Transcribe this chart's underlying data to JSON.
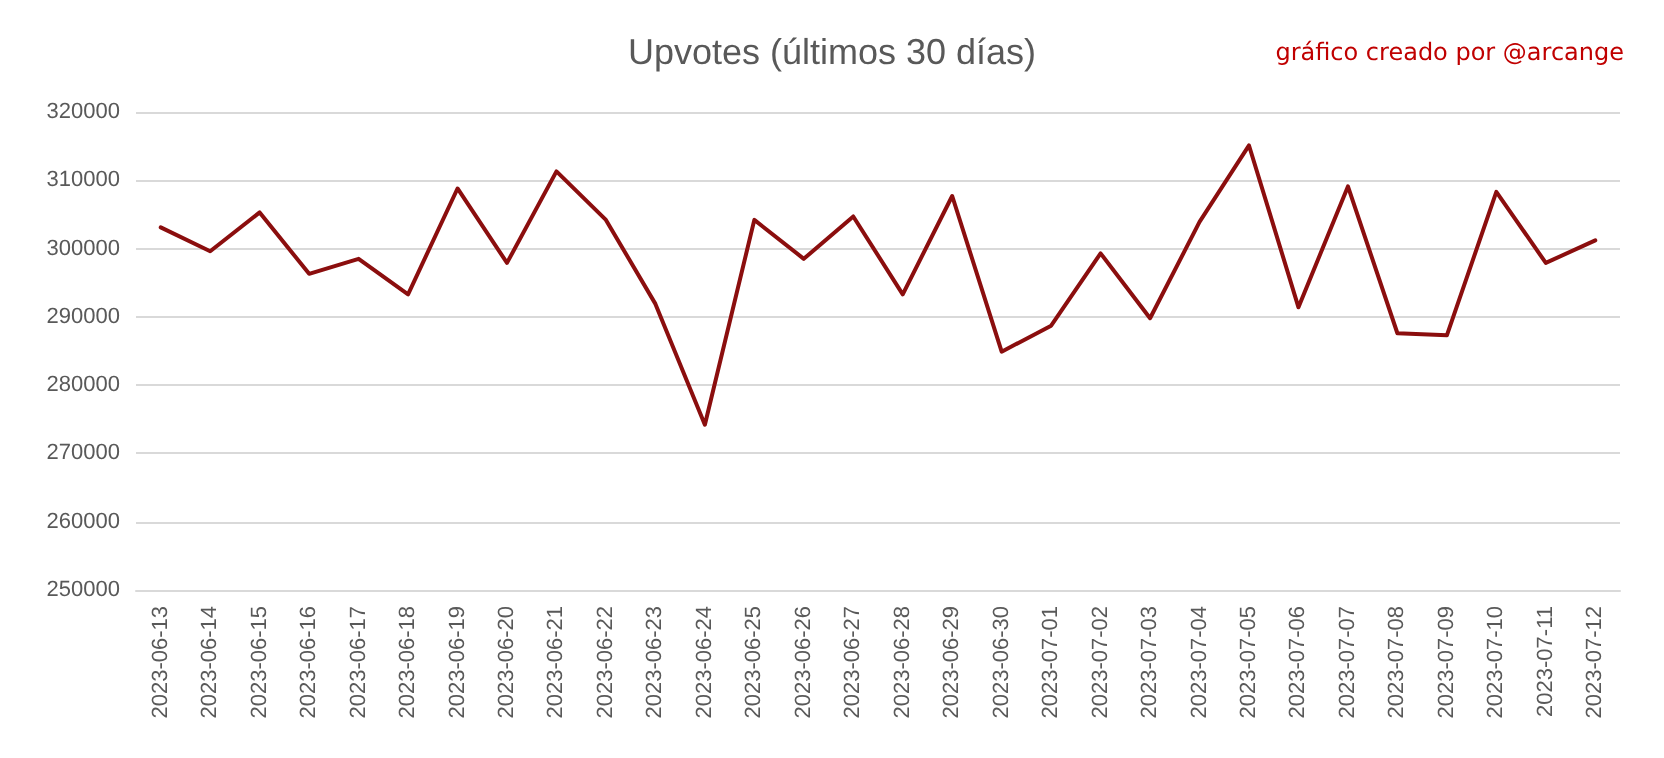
{
  "chart_data": {
    "type": "line",
    "title": "Upvotes (últimos 30 días)",
    "annotations": [
      "gráfico creado por @arcange"
    ],
    "categories": [
      "2023-06-13",
      "2023-06-14",
      "2023-06-15",
      "2023-06-16",
      "2023-06-17",
      "2023-06-18",
      "2023-06-19",
      "2023-06-20",
      "2023-06-21",
      "2023-06-22",
      "2023-06-23",
      "2023-06-24",
      "2023-06-25",
      "2023-06-26",
      "2023-06-27",
      "2023-06-28",
      "2023-06-29",
      "2023-06-30",
      "2023-07-01",
      "2023-07-02",
      "2023-07-03",
      "2023-07-04",
      "2023-07-05",
      "2023-07-06",
      "2023-07-07",
      "2023-07-08",
      "2023-07-09",
      "2023-07-10",
      "2023-07-11",
      "2023-07-12"
    ],
    "series": [
      {
        "color": "#8b0e0e",
        "values": [
          303100,
          299600,
          305300,
          296300,
          298500,
          293300,
          308800,
          297900,
          311300,
          304200,
          291900,
          274200,
          304200,
          298500,
          304700,
          293300,
          307700,
          284900,
          288700,
          299300,
          289800,
          303900,
          315100,
          291400,
          309100,
          287600,
          287300,
          308300,
          297900,
          301200
        ]
      }
    ],
    "ylim": [
      250000,
      320000
    ],
    "yticks": [
      250000,
      260000,
      270000,
      280000,
      290000,
      300000,
      310000,
      320000
    ],
    "grid": "y",
    "marker": "none",
    "line_style": "solid"
  }
}
